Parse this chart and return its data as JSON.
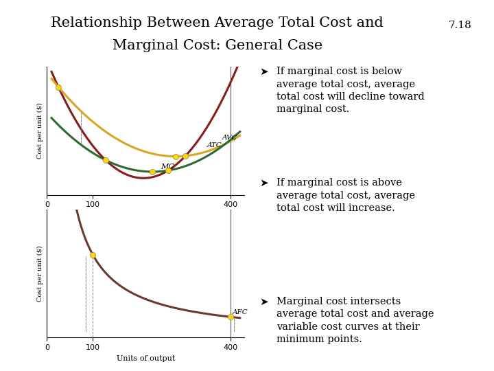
{
  "title_line1": "Relationship Between Average Total Cost and",
  "title_line2": "Marginal Cost: General Case",
  "slide_number": "7.18",
  "separator_color": "#D4A017",
  "background_color": "#FFFFFF",
  "text_color": "#000000",
  "bullets": [
    "If marginal cost is below\naverage total cost, average\ntotal cost will decline toward\nmarginal cost.",
    "If marginal cost is above\naverage total cost, average\ntotal cost will increase.",
    "Marginal cost intersects\naverage total cost and average\nvariable cost curves at their\nminimum points."
  ],
  "chart1": {
    "mc_color": "#8B1A1A",
    "atc_color": "#DAA520",
    "avc_color": "#2D6A2D",
    "dot_color": "#FFD700",
    "mc_label": "MC",
    "atc_label": "ATC",
    "avc_label": "AVC",
    "ylabel": "Cost per unit ($)"
  },
  "chart2": {
    "afc_color": "#6B3A2A",
    "dot_color": "#FFD700",
    "afc_label": "AFC",
    "ylabel": "Cost per unit ($)",
    "xlabel": "Units of output"
  }
}
